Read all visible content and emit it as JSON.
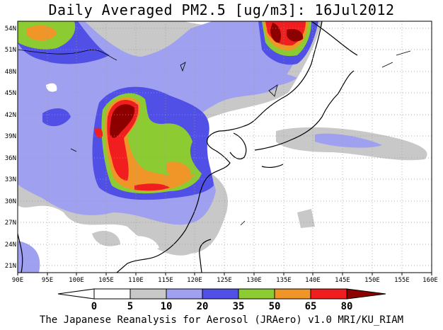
{
  "title": "Daily Averaged PM2.5 [ug/m3]: 16Jul2012",
  "footer": "The Japanese Reanalysis for Aerosol (JRAero) v1.0 MRI/KU_RIAM",
  "map": {
    "lon_range": [
      90,
      160
    ],
    "lat_range": [
      20,
      55
    ],
    "lon_ticks": [
      "90E",
      "95E",
      "100E",
      "105E",
      "110E",
      "115E",
      "120E",
      "125E",
      "130E",
      "135E",
      "140E",
      "145E",
      "150E",
      "155E",
      "160E"
    ],
    "lat_ticks": [
      "54N",
      "51N",
      "48N",
      "45N",
      "42N",
      "39N",
      "36N",
      "33N",
      "30N",
      "27N",
      "24N",
      "21N"
    ]
  },
  "colorbar": {
    "levels": [
      "0",
      "5",
      "10",
      "20",
      "35",
      "50",
      "65",
      "80"
    ],
    "colors": [
      "#ffffff",
      "#c8c8c8",
      "#a0a0f0",
      "#5050e6",
      "#8ccc32",
      "#f09628",
      "#f01e1e",
      "#8c0000"
    ]
  }
}
